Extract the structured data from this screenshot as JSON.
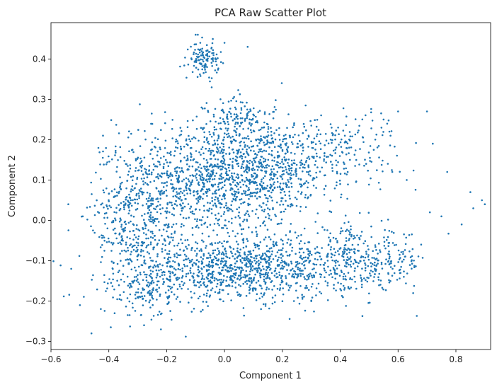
{
  "chart_data": {
    "type": "scatter",
    "title": "PCA Raw Scatter Plot",
    "xlabel": "Component 1",
    "ylabel": "Component 2",
    "xlim": [
      -0.6,
      0.92
    ],
    "ylim": [
      -0.32,
      0.49
    ],
    "x_ticks": [
      -0.6,
      -0.4,
      -0.2,
      0.0,
      0.2,
      0.4,
      0.6,
      0.8
    ],
    "x_tick_labels": [
      "−0.6",
      "−0.4",
      "−0.2",
      "0.0",
      "0.2",
      "0.4",
      "0.6",
      "0.8"
    ],
    "y_ticks": [
      -0.3,
      -0.2,
      -0.1,
      0.0,
      0.1,
      0.2,
      0.3,
      0.4
    ],
    "y_tick_labels": [
      "−0.3",
      "−0.2",
      "−0.1",
      "0.0",
      "0.1",
      "0.2",
      "0.3",
      "0.4"
    ],
    "grid": false,
    "legend": "none",
    "point_color": "#1f77b4",
    "series": [
      {
        "clusters": [
          {
            "center": [
              -0.05,
              0.1
            ],
            "spread": [
              0.15,
              0.07
            ],
            "n": 900
          },
          {
            "center": [
              0.15,
              0.13
            ],
            "spread": [
              0.12,
              0.06
            ],
            "n": 500
          },
          {
            "center": [
              -0.3,
              0.0
            ],
            "spread": [
              0.08,
              0.1
            ],
            "n": 450
          },
          {
            "center": [
              0.05,
              -0.12
            ],
            "spread": [
              0.2,
              0.04
            ],
            "n": 1000
          },
          {
            "center": [
              0.45,
              -0.1
            ],
            "spread": [
              0.13,
              0.04
            ],
            "n": 350
          },
          {
            "center": [
              -0.07,
              0.4
            ],
            "spread": [
              0.025,
              0.02
            ],
            "n": 120
          },
          {
            "center": [
              0.4,
              0.18
            ],
            "spread": [
              0.1,
              0.05
            ],
            "n": 180
          },
          {
            "center": [
              0.05,
              0.25
            ],
            "spread": [
              0.06,
              0.03
            ],
            "n": 120
          },
          {
            "center": [
              -0.27,
              -0.18
            ],
            "spread": [
              0.04,
              0.03
            ],
            "n": 80
          }
        ],
        "outliers": [
          [
            -0.54,
            0.04
          ],
          [
            -0.53,
            -0.12
          ],
          [
            -0.46,
            -0.28
          ],
          [
            -0.42,
            0.21
          ],
          [
            -0.22,
            -0.27
          ],
          [
            0.6,
            0.27
          ],
          [
            0.7,
            0.27
          ],
          [
            0.72,
            0.19
          ],
          [
            0.77,
            0.12
          ],
          [
            0.85,
            0.07
          ],
          [
            0.89,
            0.05
          ],
          [
            0.9,
            0.04
          ],
          [
            0.82,
            -0.01
          ],
          [
            0.86,
            0.03
          ],
          [
            0.62,
            -0.14
          ],
          [
            0.57,
            0.22
          ],
          [
            0.55,
            0.25
          ],
          [
            0.08,
            0.43
          ],
          [
            0.0,
            0.44
          ],
          [
            -0.1,
            0.46
          ],
          [
            0.75,
            0.01
          ],
          [
            0.71,
            0.02
          ],
          [
            0.58,
            0.12
          ],
          [
            0.63,
            0.1
          ],
          [
            -0.5,
            -0.21
          ],
          [
            -0.49,
            0.01
          ],
          [
            -0.38,
            -0.23
          ],
          [
            0.3,
            -0.2
          ],
          [
            0.4,
            -0.17
          ],
          [
            0.68,
            -0.06
          ]
        ]
      }
    ]
  }
}
